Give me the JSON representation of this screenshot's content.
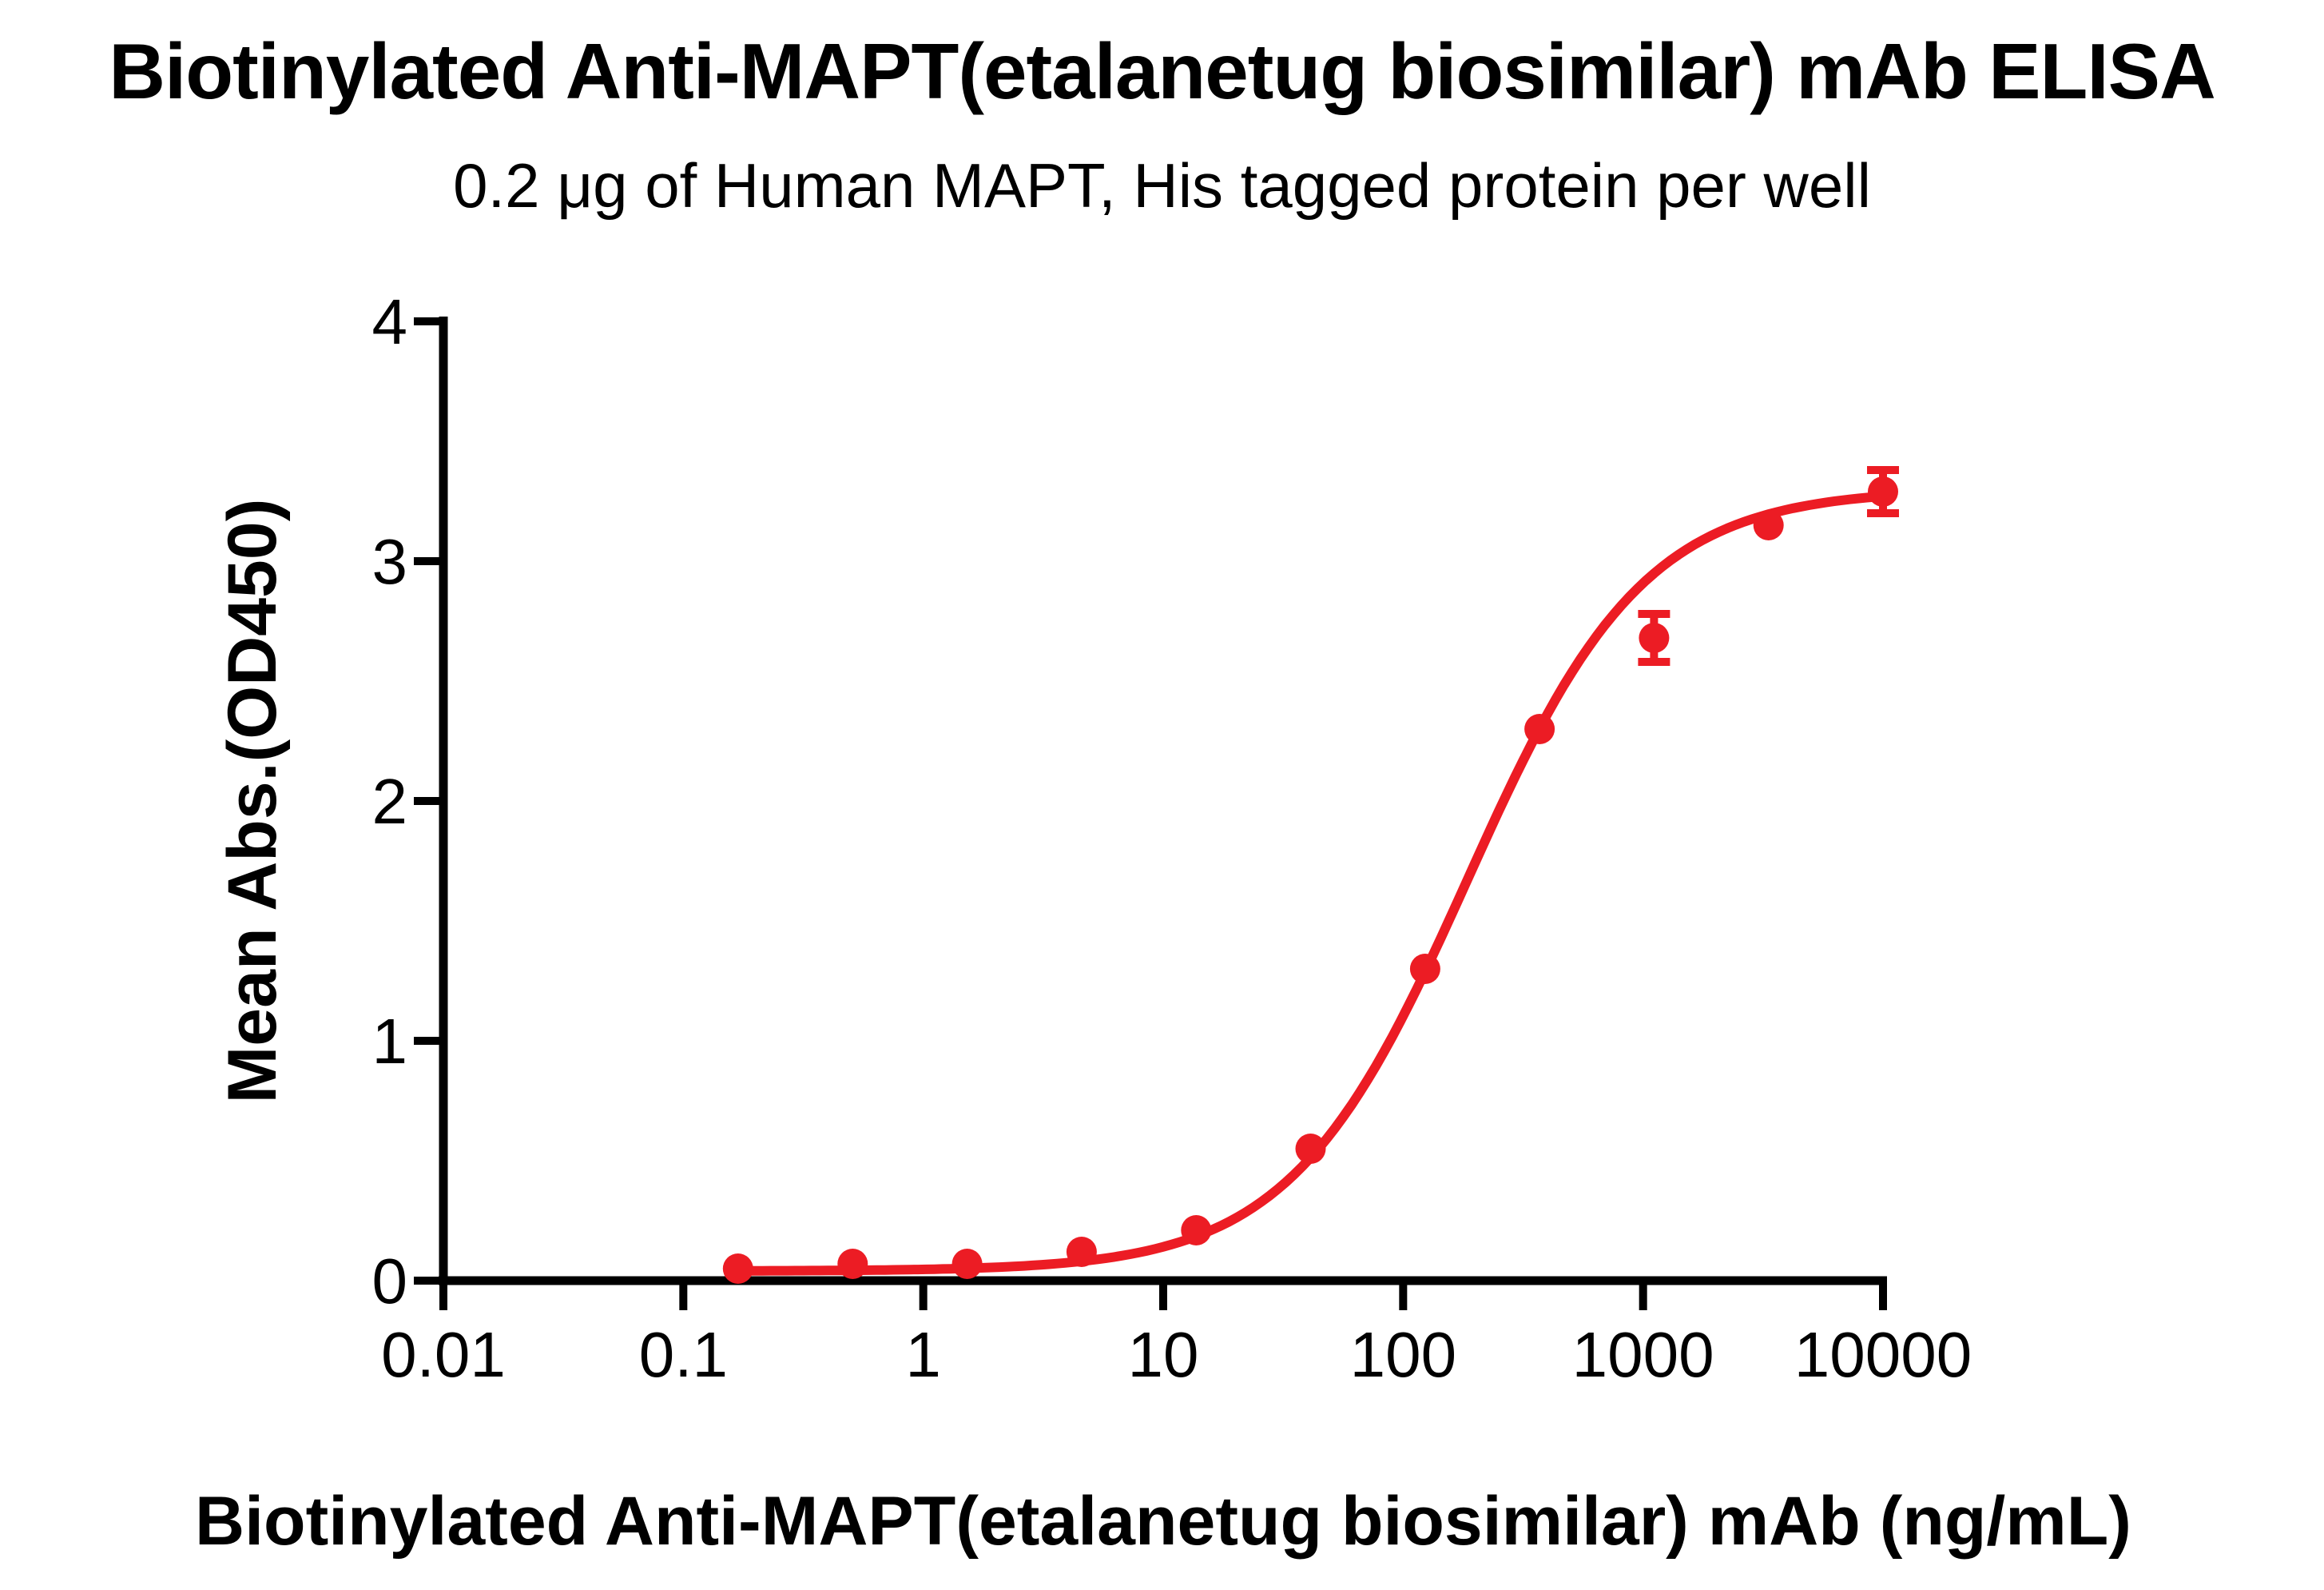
{
  "chart_data": {
    "type": "scatter",
    "title": "Biotinylated Anti-MAPT(etalanetug biosimilar) mAb ELISA",
    "subtitle": "0.2 μg of Human MAPT, His tagged protein per well",
    "xlabel": "Biotinylated Anti-MAPT(etalanetug biosimilar) mAb (ng/mL)",
    "ylabel": "Mean Abs.(OD450)",
    "x_scale": "log10",
    "xlim": [
      0.01,
      10000
    ],
    "ylim": [
      0,
      4
    ],
    "x_ticks": [
      0.01,
      0.1,
      1,
      10,
      100,
      1000,
      10000
    ],
    "x_tick_labels": [
      "0.01",
      "0.1",
      "1",
      "10",
      "100",
      "1000",
      "10000"
    ],
    "y_ticks": [
      0,
      1,
      2,
      3,
      4
    ],
    "y_tick_labels": [
      "0",
      "1",
      "2",
      "3",
      "4"
    ],
    "grid": false,
    "legend": false,
    "axis_color": "#000000",
    "series": [
      {
        "name": "Biotinylated Anti-MAPT(etalanetug biosimilar) mAb",
        "marker": "circle",
        "color": "#EC1C24",
        "x": [
          0.169,
          0.508,
          1.524,
          4.572,
          13.72,
          41.15,
          123.5,
          370.4,
          1111,
          3333,
          10000
        ],
        "y": [
          0.05,
          0.07,
          0.07,
          0.12,
          0.21,
          0.55,
          1.3,
          2.3,
          2.68,
          3.15,
          3.29
        ],
        "y_err": [
          0,
          0,
          0,
          0,
          0,
          0,
          0,
          0,
          0.1,
          0,
          0.09
        ]
      }
    ],
    "fit_curve": {
      "model": "4PL",
      "bottom": 0.04,
      "top": 3.3,
      "ec50": 185,
      "hill": 1.18,
      "x_start": 0.169,
      "x_end": 10000
    }
  }
}
